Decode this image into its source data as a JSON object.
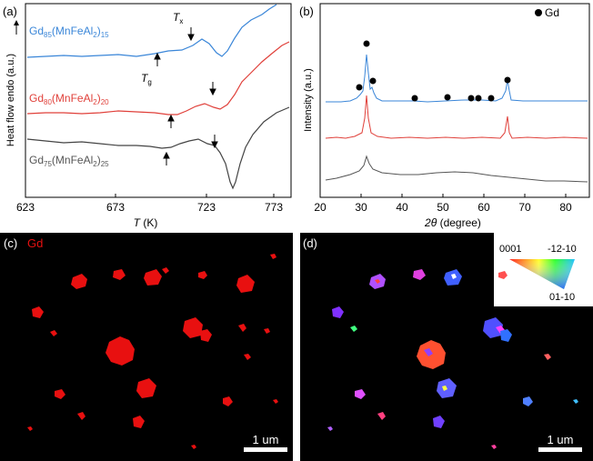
{
  "panels": {
    "a": {
      "label": "(a)",
      "ylabel": "Heat flow endo (a.u.)",
      "xlabel_italic": "T",
      "xlabel_unit": " (K)",
      "xticks": [
        "623",
        "673",
        "723",
        "773"
      ],
      "curves": [
        {
          "base": "Gd",
          "sub1": "85",
          "mid": "(MnFeAl",
          "sub2": "2",
          "close": ")",
          "sub3": "15",
          "color": "#3a86d8"
        },
        {
          "base": "Gd",
          "sub1": "80",
          "mid": "(MnFeAl",
          "sub2": "2",
          "close": ")",
          "sub3": "20",
          "color": "#e0403a"
        },
        {
          "base": "Gd",
          "sub1": "75",
          "mid": "(MnFeAl",
          "sub2": "2",
          "close": ")",
          "sub3": "25",
          "color": "#444444"
        }
      ],
      "annotations": {
        "tx_main": "T",
        "tx_sub": "x",
        "tg_main": "T",
        "tg_sub": "g"
      }
    },
    "b": {
      "label": "(b)",
      "ylabel": "Intensity (a.u.)",
      "xlabel_italic": "2θ",
      "xlabel_unit": " (degree)",
      "xticks": [
        "20",
        "30",
        "40",
        "50",
        "60",
        "70",
        "80"
      ],
      "legend": "Gd",
      "peak_positions": [
        29,
        31,
        32.5,
        42.5,
        50.5,
        56.5,
        58,
        61,
        65.5
      ]
    },
    "c": {
      "label": "(c)",
      "element": "Gd",
      "scalebar": "1 um"
    },
    "d": {
      "label": "(d)",
      "scalebar": "1 um",
      "ipf_labels": [
        "0001",
        "-12-10",
        "01-10"
      ]
    }
  }
}
